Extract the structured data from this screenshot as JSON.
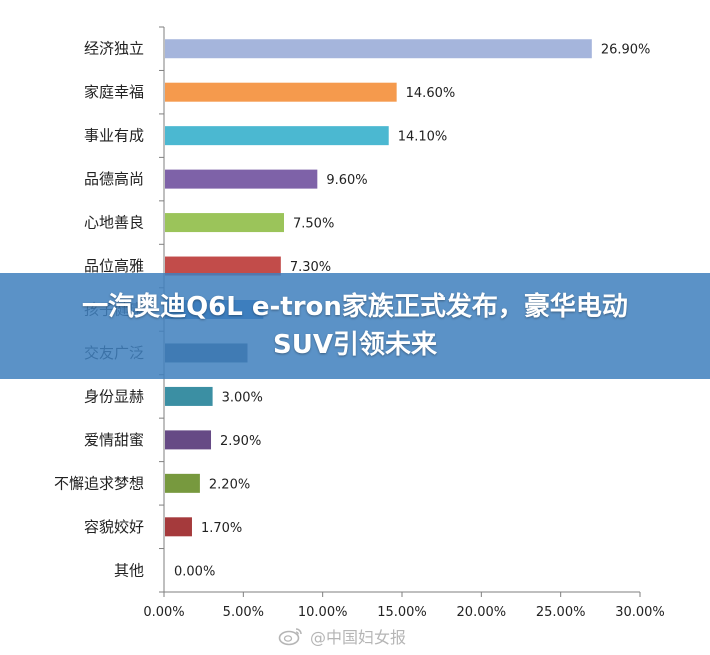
{
  "banner": {
    "headline": "一汽奥迪Q6L e-tron家族正式发布，豪华电动SUV引领未来"
  },
  "watermark": {
    "text": "@中国妇女报",
    "icon": "weibo-icon"
  },
  "chart_data": {
    "type": "bar",
    "orientation": "horizontal",
    "title": "",
    "xlabel": "",
    "ylabel": "",
    "xlim": [
      0,
      30
    ],
    "x_ticks": [
      "0.00%",
      "5.00%",
      "10.00%",
      "15.00%",
      "20.00%",
      "25.00%",
      "30.00%"
    ],
    "grid": false,
    "categories": [
      "经济独立",
      "家庭幸福",
      "事业有成",
      "品德高尚",
      "心地善良",
      "品位高雅",
      "孩子健康",
      "交友广泛",
      "身份显赫",
      "爱情甜蜜",
      "不懈追求梦想",
      "容貌姣好",
      "其他"
    ],
    "values": [
      26.9,
      14.6,
      14.1,
      9.6,
      7.5,
      7.3,
      6.2,
      5.2,
      3.0,
      2.9,
      2.2,
      1.7,
      0.0
    ],
    "value_labels": [
      "26.90%",
      "14.60%",
      "14.10%",
      "9.60%",
      "7.50%",
      "7.30%",
      "",
      "",
      "3.00%",
      "2.90%",
      "2.20%",
      "1.70%",
      "0.00%"
    ],
    "colors": [
      "#a5b5dc",
      "#f59a4d",
      "#4bb8d1",
      "#7e62a8",
      "#9bc45a",
      "#c24c4a",
      "#2d6fbf",
      "#3f5f7a",
      "#3b8fa3",
      "#664a85",
      "#77993e",
      "#a53a3c",
      "#888888"
    ]
  }
}
